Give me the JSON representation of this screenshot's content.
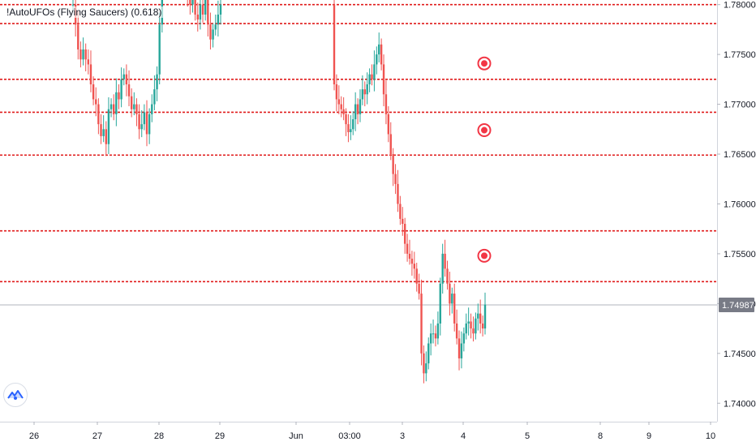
{
  "indicator": {
    "title": "!AutoUFOs (Flying Saucers) (0.618)"
  },
  "colors": {
    "up": "#26a69a",
    "down": "#ef5350",
    "level_line": "#e01b1b",
    "ufo": "#f23645",
    "last_price_line": "#b2b5be",
    "last_price_label_bg": "#787b86"
  },
  "icons": {
    "logo": "tradingview-logo-icon",
    "ufo": "target-ring-icon"
  },
  "chart_data": {
    "type": "candlestick",
    "title": "",
    "xlabel": "",
    "ylabel": "",
    "ylim": [
      1.7388,
      1.7803
    ],
    "y_ticks": [
      "1.74000",
      "1.74500",
      "1.75000",
      "1.75500",
      "1.76000",
      "1.76500",
      "1.77000",
      "1.77500",
      "1.78000"
    ],
    "x_ticks": [
      "26",
      "27",
      "28",
      "29",
      "Jun",
      "03:00",
      "3",
      "4",
      "5",
      "8",
      "9",
      "10"
    ],
    "last_price": "1.74987",
    "levels": [
      1.78,
      1.7781,
      1.7725,
      1.7692,
      1.7649,
      1.7573,
      1.7522
    ],
    "ufo_markers": [
      1.7741,
      1.7674,
      1.7548
    ],
    "segments": [
      {
        "name": "segment-1",
        "start": 1.78,
        "points": [
          1.78,
          1.778,
          1.7755,
          1.7745,
          1.7755,
          1.7745,
          1.774,
          1.772,
          1.7705,
          1.77,
          1.768,
          1.7668,
          1.7675,
          1.766,
          1.7695,
          1.77,
          1.769,
          1.7712,
          1.7705,
          1.7725,
          1.773,
          1.772,
          1.7708,
          1.7695,
          1.77,
          1.769,
          1.7675,
          1.768,
          1.7692,
          1.767,
          1.769,
          1.77,
          1.7715,
          1.773,
          1.778,
          1.782,
          1.783,
          1.784,
          1.783,
          1.782,
          1.7835,
          1.782,
          1.7835,
          1.783,
          1.7815,
          1.781,
          1.78,
          1.782,
          1.779,
          1.7785,
          1.78,
          1.779,
          1.781,
          1.778,
          1.7765,
          1.7775,
          1.778,
          1.779,
          1.78
        ]
      },
      {
        "name": "segment-2",
        "start": 1.78,
        "points": [
          1.772,
          1.7705,
          1.77,
          1.7695,
          1.769,
          1.768,
          1.7672,
          1.7675,
          1.7685,
          1.77,
          1.769,
          1.7705,
          1.7715,
          1.771,
          1.772,
          1.773,
          1.7725,
          1.774,
          1.775,
          1.776,
          1.774,
          1.771,
          1.769,
          1.767,
          1.765,
          1.763,
          1.762,
          1.76,
          1.7585,
          1.758,
          1.756,
          1.755,
          1.7545,
          1.754,
          1.7535,
          1.752,
          1.751,
          1.745,
          1.743,
          1.744,
          1.746,
          1.747,
          1.747,
          1.7465,
          1.748,
          1.752,
          1.755,
          1.7535,
          1.752,
          1.75,
          1.751,
          1.748,
          1.7465,
          1.7445,
          1.746,
          1.747,
          1.748,
          1.7482,
          1.7475,
          1.747,
          1.7485,
          1.749,
          1.748,
          1.7475,
          1.7499
        ]
      }
    ]
  }
}
